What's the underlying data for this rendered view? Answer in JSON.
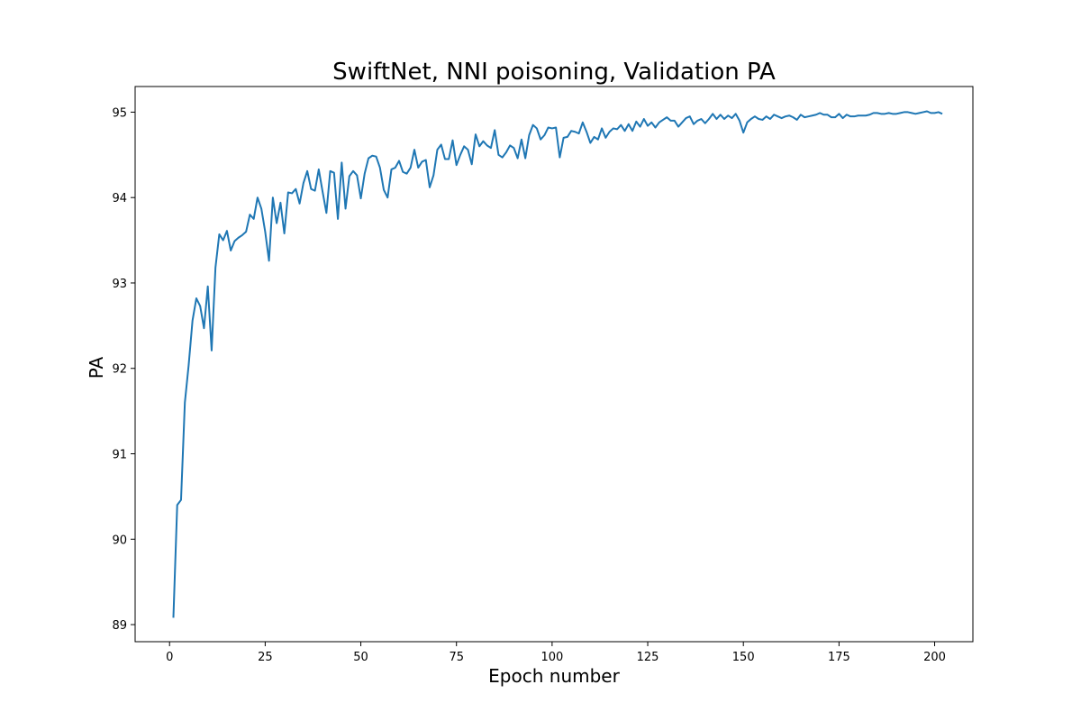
{
  "chart_data": {
    "type": "line",
    "title": "SwiftNet, NNI poisoning, Validation PA",
    "xlabel": "Epoch number",
    "ylabel": "PA",
    "xlim": [
      -9,
      210
    ],
    "ylim": [
      88.8,
      95.3
    ],
    "xticks": [
      0,
      25,
      50,
      75,
      100,
      125,
      150,
      175,
      200
    ],
    "yticks": [
      89,
      90,
      91,
      92,
      93,
      94,
      95
    ],
    "grid": false,
    "series": [
      {
        "color": "#1f77b4",
        "x_start": 1,
        "x_step": 1,
        "values": [
          89.08,
          90.4,
          90.46,
          91.6,
          92.04,
          92.56,
          92.82,
          92.73,
          92.47,
          92.96,
          92.21,
          93.18,
          93.57,
          93.5,
          93.61,
          93.38,
          93.49,
          93.53,
          93.56,
          93.6,
          93.8,
          93.75,
          94.0,
          93.87,
          93.6,
          93.26,
          94.0,
          93.7,
          93.94,
          93.58,
          94.06,
          94.05,
          94.1,
          93.93,
          94.17,
          94.31,
          94.1,
          94.08,
          94.33,
          94.07,
          93.82,
          94.31,
          94.29,
          93.75,
          94.41,
          93.87,
          94.25,
          94.31,
          94.26,
          93.99,
          94.28,
          94.46,
          94.49,
          94.48,
          94.35,
          94.09,
          94.0,
          94.33,
          94.35,
          94.43,
          94.3,
          94.28,
          94.35,
          94.56,
          94.35,
          94.42,
          94.44,
          94.12,
          94.26,
          94.56,
          94.62,
          94.45,
          94.45,
          94.67,
          94.38,
          94.5,
          94.6,
          94.56,
          94.39,
          94.74,
          94.6,
          94.66,
          94.61,
          94.58,
          94.79,
          94.5,
          94.47,
          94.53,
          94.61,
          94.58,
          94.46,
          94.68,
          94.46,
          94.73,
          94.85,
          94.81,
          94.68,
          94.73,
          94.82,
          94.81,
          94.82,
          94.47,
          94.7,
          94.71,
          94.78,
          94.77,
          94.75,
          94.88,
          94.77,
          94.64,
          94.71,
          94.68,
          94.81,
          94.7,
          94.77,
          94.81,
          94.8,
          94.85,
          94.78,
          94.86,
          94.78,
          94.89,
          94.83,
          94.92,
          94.84,
          94.88,
          94.82,
          94.88,
          94.91,
          94.94,
          94.9,
          94.9,
          94.83,
          94.88,
          94.93,
          94.95,
          94.86,
          94.9,
          94.92,
          94.87,
          94.92,
          94.98,
          94.92,
          94.97,
          94.92,
          94.96,
          94.93,
          94.98,
          94.9,
          94.76,
          94.88,
          94.92,
          94.95,
          94.92,
          94.91,
          94.95,
          94.92,
          94.97,
          94.95,
          94.93,
          94.95,
          94.96,
          94.94,
          94.91,
          94.97,
          94.94,
          94.95,
          94.96,
          94.97,
          94.99,
          94.97,
          94.97,
          94.94,
          94.94,
          94.98,
          94.93,
          94.97,
          94.95,
          94.95,
          94.96,
          94.96,
          94.96,
          94.97,
          94.99,
          94.99,
          94.98,
          94.98,
          94.99,
          94.98,
          94.98,
          94.99,
          95.0,
          95.0,
          94.99,
          94.98,
          94.99,
          95.0,
          95.01,
          94.99,
          94.99,
          95.0,
          94.98
        ]
      }
    ]
  }
}
